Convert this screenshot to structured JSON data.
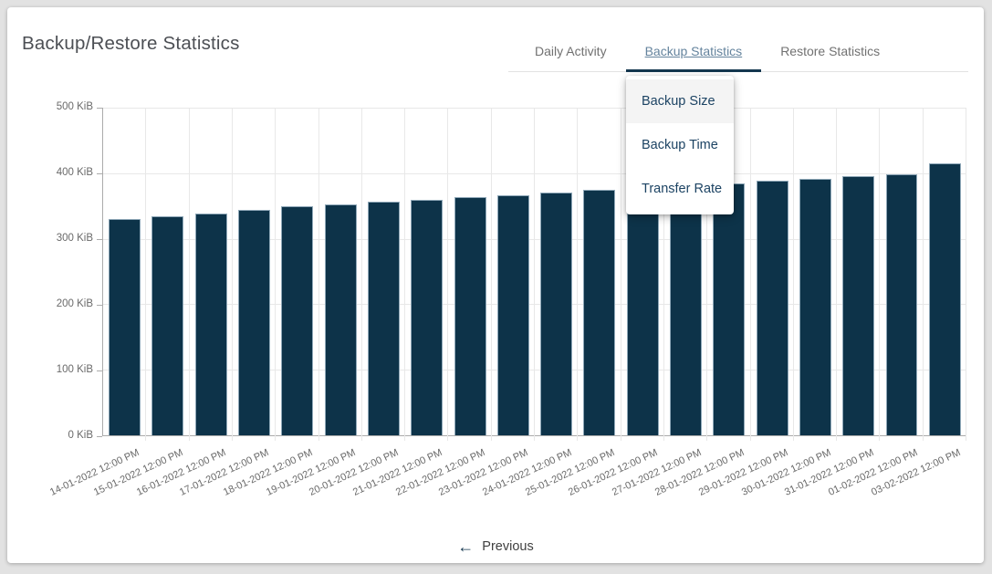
{
  "page": {
    "title": "Backup/Restore Statistics"
  },
  "tabs": [
    {
      "label": "Daily Activity",
      "active": false
    },
    {
      "label": "Backup Statistics",
      "active": true
    },
    {
      "label": "Restore Statistics",
      "active": false
    }
  ],
  "dropdown_menu": {
    "items": [
      {
        "label": "Backup Size",
        "selected": true
      },
      {
        "label": "Backup Time",
        "selected": false
      },
      {
        "label": "Transfer Rate",
        "selected": false
      }
    ]
  },
  "pagination": {
    "previous_arrow": "←",
    "previous_label": "Previous"
  },
  "colors": {
    "bar_fill": "#0d3349",
    "bar_border": "#8fa8b8",
    "accent_navy": "#14374f",
    "active_tab_text": "#64839d",
    "inactive_tab_text": "#717171",
    "menu_text": "#1c4363",
    "grid": "#e8e8e8",
    "axis": "#ababab",
    "axis_text": "#6a6a6a",
    "page_bg": "#e2e2e2",
    "card_bg": "#ffffff"
  },
  "chart_data": {
    "type": "bar",
    "title": "",
    "xlabel": "",
    "ylabel": "",
    "unit": "KiB",
    "ylim": [
      0,
      500
    ],
    "ytick_step": 100,
    "ytick_labels": [
      "0 KiB",
      "100 KiB",
      "200 KiB",
      "300 KiB",
      "400 KiB",
      "500 KiB"
    ],
    "grid": true,
    "legend": false,
    "categories": [
      "14-01-2022 12:00 PM",
      "15-01-2022 12:00 PM",
      "16-01-2022 12:00 PM",
      "17-01-2022 12:00 PM",
      "18-01-2022 12:00 PM",
      "19-01-2022 12:00 PM",
      "20-01-2022 12:00 PM",
      "21-01-2022 12:00 PM",
      "22-01-2022 12:00 PM",
      "23-01-2022 12:00 PM",
      "24-01-2022 12:00 PM",
      "25-01-2022 12:00 PM",
      "26-01-2022 12:00 PM",
      "27-01-2022 12:00 PM",
      "28-01-2022 12:00 PM",
      "29-01-2022 12:00 PM",
      "30-01-2022 12:00 PM",
      "31-01-2022 12:00 PM",
      "01-02-2022 12:00 PM",
      "03-02-2022 12:00 PM"
    ],
    "values": [
      330,
      334,
      338,
      344,
      349,
      353,
      357,
      360,
      363,
      367,
      371,
      374,
      377,
      381,
      384,
      388,
      391,
      395,
      399,
      415
    ]
  }
}
